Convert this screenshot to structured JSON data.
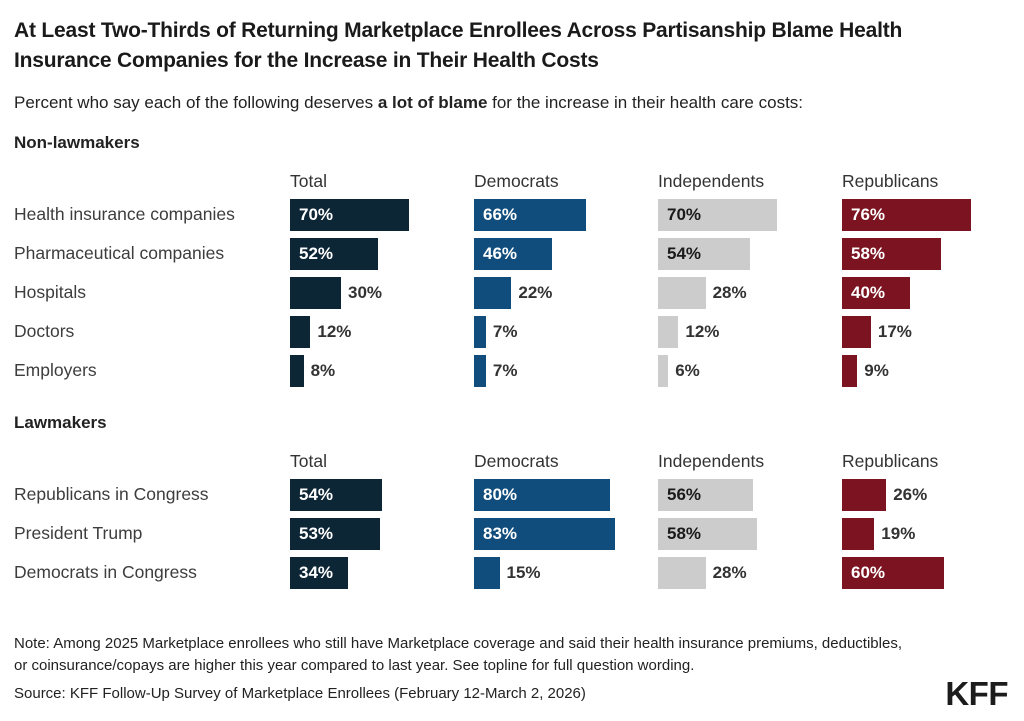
{
  "header": {
    "title": "At Least Two-Thirds of Returning Marketplace Enrollees Across Partisanship Blame Health Insurance Companies for the Increase in Their Health Costs",
    "subtitle_prefix": "Percent who say each of the following deserves ",
    "subtitle_bold": "a lot of blame",
    "subtitle_suffix": " for the increase in their health care costs:"
  },
  "footer": {
    "note": "Note: Among 2025 Marketplace enrollees who still have Marketplace coverage and said their health insurance premiums, deductibles, or coinsurance/copays are higher this year compared to last year. See topline for full question wording.",
    "source": "Source: KFF Follow-Up Survey of Marketplace Enrollees (February 12-March 2, 2026)",
    "logo": "KFF"
  },
  "chart_data": {
    "type": "bar",
    "orientation": "horizontal",
    "unit": "%",
    "xlim": [
      0,
      100
    ],
    "grid": false,
    "inside_label_min_value": 32,
    "columns": [
      {
        "label": "Total",
        "color": "#0d2636",
        "inside_label_color": "#ffffff"
      },
      {
        "label": "Democrats",
        "color": "#104d7c",
        "inside_label_color": "#ffffff"
      },
      {
        "label": "Independents",
        "color": "#cccccc",
        "inside_label_color": "#1a1a1a"
      },
      {
        "label": "Republicans",
        "color": "#7b1420",
        "inside_label_color": "#ffffff"
      }
    ],
    "sections": [
      {
        "label": "Non-lawmakers",
        "rows": [
          {
            "category": "Health insurance companies",
            "values": [
              70,
              66,
              70,
              76
            ]
          },
          {
            "category": "Pharmaceutical companies",
            "values": [
              52,
              46,
              54,
              58
            ]
          },
          {
            "category": "Hospitals",
            "values": [
              30,
              22,
              28,
              40
            ]
          },
          {
            "category": "Doctors",
            "values": [
              12,
              7,
              12,
              17
            ]
          },
          {
            "category": "Employers",
            "values": [
              8,
              7,
              6,
              9
            ]
          }
        ]
      },
      {
        "label": "Lawmakers",
        "rows": [
          {
            "category": "Republicans in Congress",
            "values": [
              54,
              80,
              56,
              26
            ]
          },
          {
            "category": "President Trump",
            "values": [
              53,
              83,
              58,
              19
            ]
          },
          {
            "category": "Democrats in Congress",
            "values": [
              34,
              15,
              28,
              60
            ]
          }
        ]
      }
    ]
  }
}
